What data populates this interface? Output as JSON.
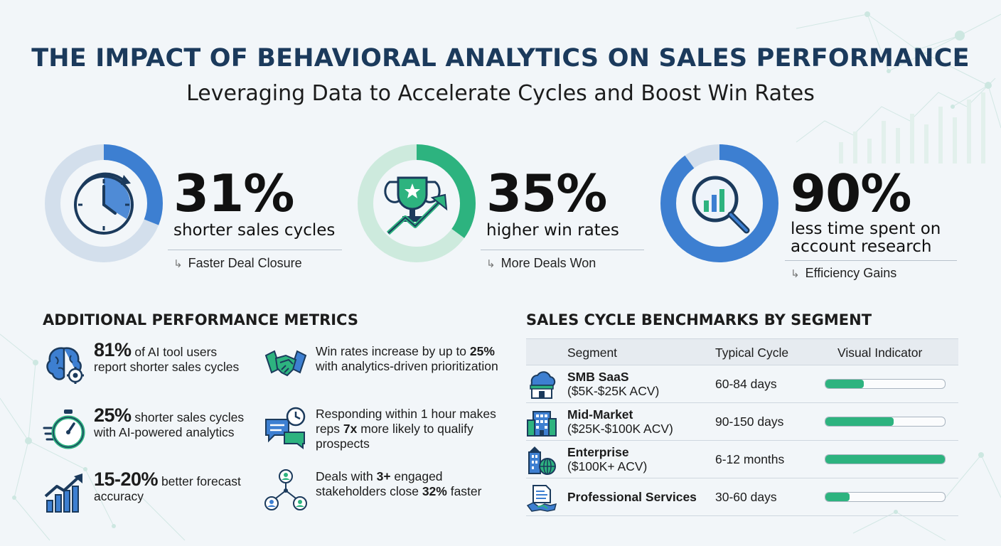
{
  "header": {
    "title": "THE IMPACT OF BEHAVIORAL ANALYTICS ON SALES PERFORMANCE",
    "subtitle": "Leveraging Data to Accelerate Cycles and Boost Win Rates"
  },
  "stats": [
    {
      "value": "31%",
      "line1": "shorter sales cycles",
      "line2": "",
      "tag": "Faster Deal Closure",
      "fraction": 0.31,
      "color": "#3d7fd1",
      "track": "#d3dfec",
      "icon": "stopwatch-icon"
    },
    {
      "value": "35%",
      "line1": "higher win rates",
      "line2": "",
      "tag": "More Deals Won",
      "fraction": 0.35,
      "color": "#2db37f",
      "track": "#cdeadd",
      "icon": "trophy-growth-icon"
    },
    {
      "value": "90%",
      "line1": "less time spent on",
      "line2": "account research",
      "tag": "Efficiency Gains",
      "fraction": 0.9,
      "color": "#3d7fd1",
      "track": "#d3dfec",
      "icon": "magnifier-chart-icon"
    }
  ],
  "metrics_section": {
    "heading": "ADDITIONAL PERFORMANCE METRICS",
    "items": [
      {
        "icon": "brain-gear-icon",
        "highlight": "81%",
        "text": " of AI tool users report shorter sales cycles"
      },
      {
        "icon": "stopwatch-speed-icon",
        "highlight": "25%",
        "text": " shorter sales cycles with AI-powered analytics"
      },
      {
        "icon": "bar-growth-icon",
        "highlight": "15-20%",
        "text": " better forecast accuracy"
      },
      {
        "icon": "handshake-icon",
        "t1": "Win rates increase by up to ",
        "b1": "25%",
        "t2": " with analytics-driven prioritization"
      },
      {
        "icon": "chat-clock-icon",
        "t1": "Responding within 1 hour makes reps ",
        "b1": "7x",
        "t2": " more likely to qualify prospects"
      },
      {
        "icon": "stakeholders-icon",
        "t1": "Deals with ",
        "b1": "3+",
        "t2": " engaged stakeholders close ",
        "b2": "32%",
        "t3": " faster"
      }
    ]
  },
  "benchmarks": {
    "heading": "SALES CYCLE BENCHMARKS BY SEGMENT",
    "columns": [
      "Segment",
      "Typical Cycle",
      "Visual Indicator"
    ],
    "rows": [
      {
        "icon": "cloud-store-icon",
        "segment": "SMB SaaS",
        "range": "($5K-$25K ACV)",
        "cycle": "60-84 days",
        "indicator": 0.32
      },
      {
        "icon": "office-building-icon",
        "segment": "Mid-Market",
        "range": "($25K-$100K ACV)",
        "cycle": "90-150 days",
        "indicator": 0.57
      },
      {
        "icon": "enterprise-globe-icon",
        "segment": "Enterprise",
        "range": "($100K+ ACV)",
        "cycle": "6-12 months",
        "indicator": 1.0
      },
      {
        "icon": "document-handshake-icon",
        "segment": "Professional Services",
        "range": "",
        "cycle": "30-60 days",
        "indicator": 0.2
      }
    ]
  }
}
